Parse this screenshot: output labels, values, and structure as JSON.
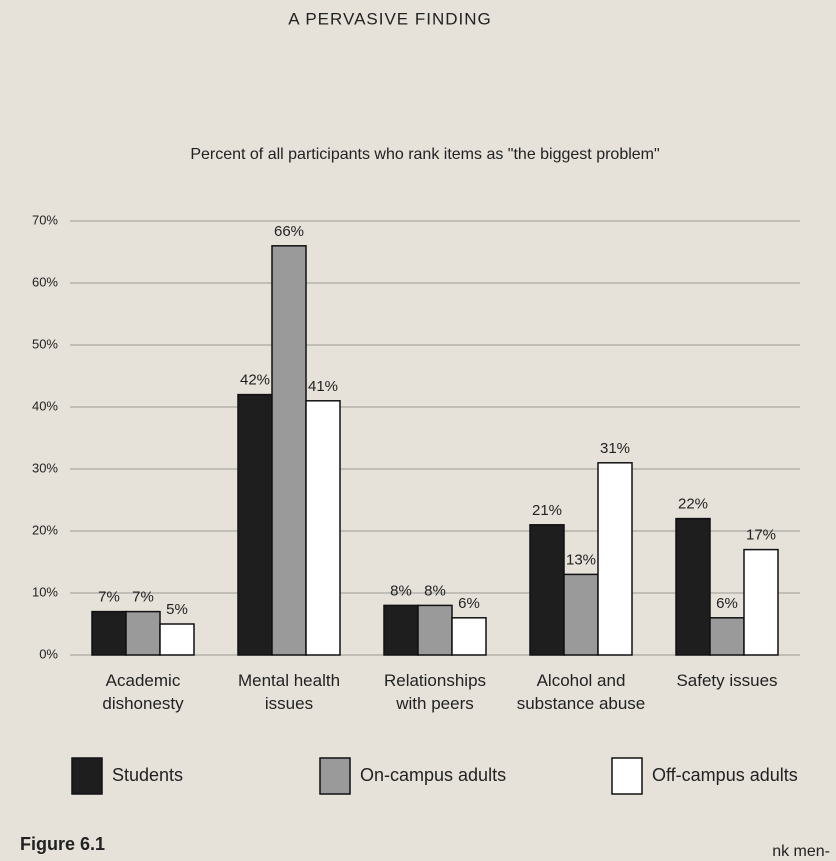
{
  "chart_data": {
    "type": "bar",
    "title": "A PERVASIVE FINDING",
    "subtitle": "Percent of all participants who rank items as \"the biggest problem\"",
    "caption": "Figure 6.1",
    "page_fragment": "nk men-",
    "categories": [
      "Academic dishonesty",
      "Mental health issues",
      "Relationships with peers",
      "Alcohol and substance abuse",
      "Safety issues"
    ],
    "series": [
      {
        "name": "Students",
        "color": "#1e1e1e",
        "values": [
          7,
          42,
          8,
          21,
          22
        ],
        "value_labels": [
          "7%",
          "42%",
          "8%",
          "21%",
          "22%"
        ]
      },
      {
        "name": "On-campus adults",
        "color": "#9a9a9a",
        "values": [
          7,
          66,
          8,
          13,
          6
        ],
        "value_labels": [
          "7%",
          "66%",
          "8%",
          "13%",
          "6%"
        ]
      },
      {
        "name": "Off-campus adults",
        "color": "#ffffff",
        "values": [
          5,
          41,
          6,
          31,
          17
        ],
        "value_labels": [
          "5%",
          "41%",
          "6%",
          "31%",
          "17%"
        ]
      }
    ],
    "ylim": [
      0,
      75
    ],
    "yticks": [
      {
        "value": 0,
        "label": "0%"
      },
      {
        "value": 10,
        "label": "10%"
      },
      {
        "value": 20,
        "label": "20%"
      },
      {
        "value": 30,
        "label": "30%"
      },
      {
        "value": 40,
        "label": "40%"
      },
      {
        "value": 50,
        "label": "50%"
      },
      {
        "value": 60,
        "label": "60%"
      },
      {
        "value": 70,
        "label": "70%"
      }
    ],
    "grid": true,
    "legend": "bottom"
  }
}
